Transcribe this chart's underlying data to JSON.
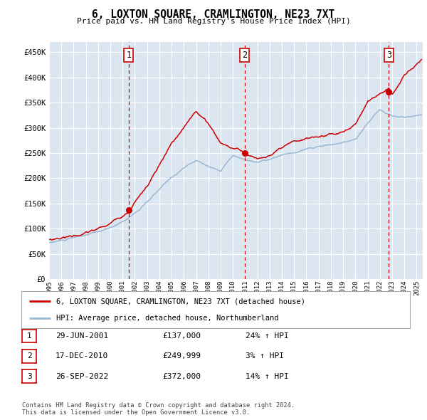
{
  "title": "6, LOXTON SQUARE, CRAMLINGTON, NE23 7XT",
  "subtitle": "Price paid vs. HM Land Registry's House Price Index (HPI)",
  "ylim": [
    0,
    470000
  ],
  "yticks": [
    0,
    50000,
    100000,
    150000,
    200000,
    250000,
    300000,
    350000,
    400000,
    450000
  ],
  "ytick_labels": [
    "£0",
    "£50K",
    "£100K",
    "£150K",
    "£200K",
    "£250K",
    "£300K",
    "£350K",
    "£400K",
    "£450K"
  ],
  "background_color": "#dce6f1",
  "grid_color": "#ffffff",
  "sale_color": "#cc0000",
  "hpi_color": "#9ab7d3",
  "transaction_dates": [
    2001.49,
    2010.96,
    2022.74
  ],
  "transaction_prices": [
    137000,
    249999,
    372000
  ],
  "transaction_labels": [
    "1",
    "2",
    "3"
  ],
  "legend_sale_label": "6, LOXTON SQUARE, CRAMLINGTON, NE23 7XT (detached house)",
  "legend_hpi_label": "HPI: Average price, detached house, Northumberland",
  "table_rows": [
    [
      "1",
      "29-JUN-2001",
      "£137,000",
      "24% ↑ HPI"
    ],
    [
      "2",
      "17-DEC-2010",
      "£249,999",
      "3% ↑ HPI"
    ],
    [
      "3",
      "26-SEP-2022",
      "£372,000",
      "14% ↑ HPI"
    ]
  ],
  "footnote": "Contains HM Land Registry data © Crown copyright and database right 2024.\nThis data is licensed under the Open Government Licence v3.0.",
  "xmin": 1995.0,
  "xmax": 2025.5,
  "hpi_years": [
    1995,
    1996,
    1997,
    1998,
    1999,
    2000,
    2001,
    2002,
    2003,
    2004,
    2005,
    2006,
    2007,
    2008,
    2009,
    2010,
    2011,
    2012,
    2013,
    2014,
    2015,
    2016,
    2017,
    2018,
    2019,
    2020,
    2021,
    2022,
    2023,
    2024,
    2025.4
  ],
  "hpi_vals": [
    72000,
    76000,
    80000,
    85000,
    90000,
    97000,
    110000,
    128000,
    148000,
    172000,
    195000,
    215000,
    228000,
    218000,
    208000,
    242000,
    232000,
    228000,
    232000,
    238000,
    242000,
    248000,
    252000,
    256000,
    260000,
    268000,
    300000,
    326000,
    315000,
    312000,
    318000
  ],
  "sale_years": [
    1995,
    1996,
    1997,
    1998,
    1999,
    2000,
    2001.49,
    2002,
    2003,
    2004,
    2005,
    2006,
    2007,
    2008,
    2009,
    2010.96,
    2011,
    2012,
    2013,
    2014,
    2015,
    2016,
    2017,
    2018,
    2019,
    2020,
    2021,
    2022.74,
    2023,
    2024,
    2025.4
  ],
  "sale_vals": [
    78000,
    83000,
    88000,
    93000,
    100000,
    110000,
    137000,
    158000,
    188000,
    228000,
    268000,
    295000,
    330000,
    305000,
    268000,
    249999,
    248000,
    238000,
    245000,
    255000,
    262000,
    268000,
    272000,
    278000,
    282000,
    295000,
    345000,
    372000,
    360000,
    400000,
    430000
  ]
}
